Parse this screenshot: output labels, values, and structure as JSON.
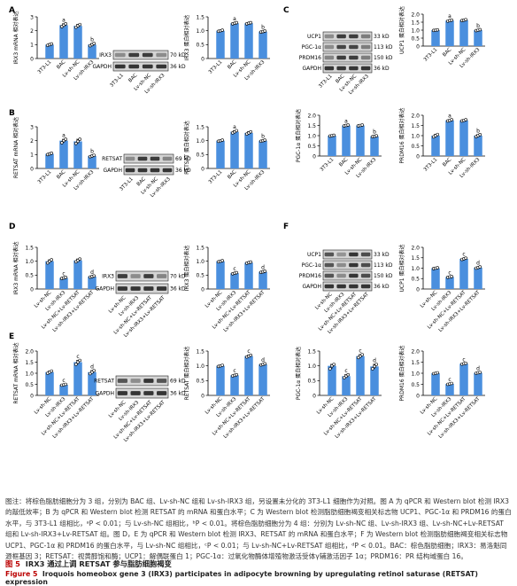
{
  "colors": {
    "bar": "#4a8fde",
    "blot_bg": "#d4d4d4",
    "band": "#353535",
    "caption_fig": "#b00000"
  },
  "panel_letters": [
    "A",
    "B",
    "C",
    "D",
    "E",
    "F"
  ],
  "caption": {
    "body": "图注：将棕色脂肪细胞分为 3 组，分别为 BAC 组、Lv-sh-NC 组和 Lv-sh-IRX3 组，另设置未分化的 3T3-L1 细胞作为对照。图 A 为 qPCR 和 Western blot 检测 IRX3 的敲低效率；B 为 qPCR 和 Western blot 检测 RETSAT 的 mRNA 和蛋白水平；C 为 Western blot 检测脂肪细胞褐变相关标志物 UCP1、PGC-1α 和 PRDM16 的蛋白水平，与 3T3-L1 组相比，ᵃP < 0.01；与 Lv-sh-NC 组相比，ᵇP < 0.01。将棕色脂肪细胞分为 4 组：分别为 Lv-sh-NC 组、Lv-sh-IRX3 组、Lv-sh-NC+Lv-RETSAT 组和 Lv-sh-IRX3+Lv-RETSAT 组。图 D，E 为 qPCR 和 Western blot 检测 IRX3、RETSAT 的 mRNA 和蛋白水平；F 为 Western blot 检测脂肪细胞褐变相关标志物 UCP1、PGC-1α 和 PRDM16 的蛋白水平，与 Lv-sh-NC 组相比，ᶜP < 0.01；与 Lv-sh-NC+Lv-RETSAT 组相比，ᵈP < 0.01。BAC：棕色脂肪细胞；IRX3：易洛魁同源框基因 3；RETSAT：视黄醇饱和酶；UCP1：解偶联蛋白 1；PGC-1α：过氧化物酶体增殖物激活受体γ辅激活因子 1α；PRDM16：PR 结构域蛋白 16。",
    "title_num": "图 5",
    "title": "IRX3 通过上调 RETSAT 参与脂肪细胞褐变",
    "en_num": "Figure 5",
    "en_title": "Iroquois homeobox gene 3 (IRX3) participates in adipocyte browning by upregulating retinol saturase (RETSAT) expression"
  },
  "blots": [
    {
      "panel": "A",
      "rows": [
        {
          "name": "IRX3",
          "size": "70 kD"
        },
        {
          "name": "GAPDH",
          "size": "36 kD"
        }
      ],
      "lanes": [
        "3T3-L1",
        "BAC",
        "Lv-sh-NC",
        "Lv-sh-IRX3"
      ],
      "intensity": [
        [
          0.45,
          0.95,
          0.95,
          0.45
        ],
        [
          1,
          1,
          1,
          1
        ]
      ]
    },
    {
      "panel": "B",
      "rows": [
        {
          "name": "RETSAT",
          "size": "69 kD"
        },
        {
          "name": "GAPDH",
          "size": "36 kD"
        }
      ],
      "lanes": [
        "3T3-L1",
        "BAC",
        "Lv-sh-NC",
        "Lv-sh-IRX3"
      ],
      "intensity": [
        [
          0.45,
          0.95,
          0.95,
          0.5
        ],
        [
          1,
          1,
          1,
          1
        ]
      ]
    },
    {
      "panel": "C",
      "rows": [
        {
          "name": "UCP1",
          "size": "33 kD"
        },
        {
          "name": "PGC-1α",
          "size": "113 kD"
        },
        {
          "name": "PRDM16",
          "size": "150 kD"
        },
        {
          "name": "GAPDH",
          "size": "36 kD"
        }
      ],
      "lanes": [
        "3T3-L1",
        "BAC",
        "Lv-sh-NC",
        "Lv-sh-IRX3"
      ],
      "intensity": [
        [
          0.45,
          0.95,
          0.95,
          0.55
        ],
        [
          0.45,
          0.9,
          0.9,
          0.55
        ],
        [
          0.5,
          0.95,
          0.95,
          0.55
        ],
        [
          1,
          1,
          1,
          1
        ]
      ]
    },
    {
      "panel": "D",
      "rows": [
        {
          "name": "IRX3",
          "size": "70 kD"
        },
        {
          "name": "GAPDH",
          "size": "36 kD"
        }
      ],
      "lanes": [
        "Lv-sh-NC",
        "Lv-sh-IRX3",
        "Lv-sh-NC+Lv-RETSAT",
        "Lv-sh-IRX3+Lv-RETSAT"
      ],
      "intensity": [
        [
          0.95,
          0.45,
          0.95,
          0.5
        ],
        [
          1,
          1,
          1,
          1
        ]
      ]
    },
    {
      "panel": "E",
      "rows": [
        {
          "name": "RETSAT",
          "size": "69 kD"
        },
        {
          "name": "GAPDH",
          "size": "36 kD"
        }
      ],
      "lanes": [
        "Lv-sh-NC",
        "Lv-sh-IRX3",
        "Lv-sh-NC+Lv-RETSAT",
        "Lv-sh-IRX3+Lv-RETSAT"
      ],
      "intensity": [
        [
          0.8,
          0.45,
          1,
          0.8
        ],
        [
          1,
          1,
          1,
          1
        ]
      ]
    },
    {
      "panel": "F",
      "rows": [
        {
          "name": "UCP1",
          "size": "33 kD"
        },
        {
          "name": "PGC-1α",
          "size": "113 kD"
        },
        {
          "name": "PRDM16",
          "size": "150 kD"
        },
        {
          "name": "GAPDH",
          "size": "36 kD"
        }
      ],
      "lanes": [
        "Lv-sh-NC",
        "Lv-sh-IRX3",
        "Lv-sh-NC+Lv-RETSAT",
        "Lv-sh-IRX3+Lv-RETSAT"
      ],
      "intensity": [
        [
          0.8,
          0.4,
          1,
          0.85
        ],
        [
          0.8,
          0.45,
          1,
          0.85
        ],
        [
          0.8,
          0.45,
          1,
          0.85
        ],
        [
          1,
          1,
          1,
          1
        ]
      ]
    }
  ],
  "chart_data": [
    {
      "panel": "A",
      "type": "bar",
      "ylabel": "IRX3 mRNA 相对表达",
      "categories": [
        "3T3-L1",
        "BAC",
        "Lv-sh-NC",
        "Lv-sh-IRX3"
      ],
      "values": [
        1.0,
        2.4,
        2.35,
        1.0
      ],
      "points": [
        [
          0.95,
          1.0,
          1.05
        ],
        [
          2.3,
          2.4,
          2.5
        ],
        [
          2.25,
          2.35,
          2.45
        ],
        [
          0.92,
          1.0,
          1.08
        ]
      ],
      "sig": [
        "",
        "a",
        "",
        "b"
      ],
      "ylim": [
        0,
        3
      ],
      "yticks": [
        0,
        1,
        2,
        3
      ],
      "ytick_labels": [
        "0",
        "1",
        "2",
        "3"
      ]
    },
    {
      "panel": "A",
      "type": "bar",
      "ylabel": "IRX3 蛋白相对表达",
      "categories": [
        "3T3-L1",
        "BAC",
        "Lv-sh-NC",
        "Lv-sh-IRX3"
      ],
      "values": [
        1.0,
        1.27,
        1.27,
        0.97
      ],
      "points": [
        [
          0.98,
          1.0,
          1.02
        ],
        [
          1.25,
          1.27,
          1.29
        ],
        [
          1.25,
          1.27,
          1.29
        ],
        [
          0.95,
          0.97,
          0.99
        ]
      ],
      "sig": [
        "",
        "a",
        "",
        "b"
      ],
      "ylim": [
        0,
        1.5
      ],
      "yticks": [
        0,
        0.5,
        1.0,
        1.5
      ],
      "ytick_labels": [
        "0",
        "0.5",
        "1.0",
        "1.5"
      ]
    },
    {
      "panel": "B",
      "type": "bar",
      "ylabel": "RETSAT mRNA 相对表达",
      "categories": [
        "3T3-L1",
        "BAC",
        "Lv-sh-NC",
        "Lv-sh-IRX3"
      ],
      "values": [
        1.05,
        2.0,
        1.95,
        0.9
      ],
      "points": [
        [
          1.0,
          1.05,
          1.1
        ],
        [
          1.85,
          2.0,
          2.1
        ],
        [
          1.8,
          1.95,
          2.1
        ],
        [
          0.85,
          0.9,
          0.95
        ]
      ],
      "sig": [
        "",
        "a",
        "",
        "b"
      ],
      "ylim": [
        0,
        3
      ],
      "yticks": [
        0,
        1,
        2,
        3
      ],
      "ytick_labels": [
        "0",
        "1",
        "2",
        "3"
      ]
    },
    {
      "panel": "B",
      "type": "bar",
      "ylabel": "RETSAT 蛋白相对表达",
      "categories": [
        "3T3-L1",
        "BAC",
        "Lv-sh-NC",
        "Lv-sh-IRX3"
      ],
      "values": [
        1.0,
        1.32,
        1.28,
        1.0
      ],
      "points": [
        [
          0.98,
          1.0,
          1.02
        ],
        [
          1.28,
          1.32,
          1.36
        ],
        [
          1.24,
          1.28,
          1.32
        ],
        [
          0.98,
          1.0,
          1.02
        ]
      ],
      "sig": [
        "",
        "a",
        "",
        "b"
      ],
      "ylim": [
        0,
        1.5
      ],
      "yticks": [
        0,
        0.5,
        1.0,
        1.5
      ],
      "ytick_labels": [
        "0",
        "0.5",
        "1.0",
        "1.5"
      ]
    },
    {
      "panel": "C",
      "type": "bar",
      "ylabel": "UCP1 蛋白相对表达",
      "categories": [
        "3T3-L1",
        "BAC",
        "Lv-sh-NC",
        "Lv-sh-IRX3"
      ],
      "values": [
        1.0,
        1.6,
        1.63,
        1.0
      ],
      "points": [
        [
          0.98,
          1.0,
          1.02
        ],
        [
          1.57,
          1.6,
          1.63
        ],
        [
          1.6,
          1.63,
          1.66
        ],
        [
          0.97,
          1.0,
          1.03
        ]
      ],
      "sig": [
        "",
        "a",
        "",
        "b"
      ],
      "ylim": [
        0,
        2
      ],
      "yticks": [
        0,
        0.5,
        1.0,
        1.5,
        2.0
      ],
      "ytick_labels": [
        "0",
        "0.5",
        "1.0",
        "1.5",
        "2.0"
      ]
    },
    {
      "panel": "C",
      "type": "bar",
      "ylabel": "PGC-1α 蛋白相对表达",
      "categories": [
        "3T3-L1",
        "BAC",
        "Lv-sh-NC",
        "Lv-sh-IRX3"
      ],
      "values": [
        1.0,
        1.5,
        1.5,
        0.97
      ],
      "points": [
        [
          0.98,
          1.0,
          1.02
        ],
        [
          1.48,
          1.5,
          1.52
        ],
        [
          1.48,
          1.5,
          1.52
        ],
        [
          0.95,
          0.97,
          0.99
        ]
      ],
      "sig": [
        "",
        "a",
        "",
        "b"
      ],
      "ylim": [
        0,
        2
      ],
      "yticks": [
        0,
        0.5,
        1.0,
        1.5,
        2.0
      ],
      "ytick_labels": [
        "0",
        "0.5",
        "1.0",
        "1.5",
        "2.0"
      ]
    },
    {
      "panel": "C",
      "type": "bar",
      "ylabel": "PRDM16 蛋白相对表达",
      "categories": [
        "3T3-L1",
        "BAC",
        "Lv-sh-NC",
        "Lv-sh-IRX3"
      ],
      "values": [
        1.0,
        1.75,
        1.75,
        1.0
      ],
      "points": [
        [
          0.94,
          1.0,
          1.06
        ],
        [
          1.72,
          1.75,
          1.78
        ],
        [
          1.72,
          1.75,
          1.78
        ],
        [
          0.95,
          1.0,
          1.05
        ]
      ],
      "sig": [
        "",
        "a",
        "",
        "b"
      ],
      "ylim": [
        0,
        2
      ],
      "yticks": [
        0,
        0.5,
        1.0,
        1.5,
        2.0
      ],
      "ytick_labels": [
        "0",
        "0.5",
        "1.0",
        "1.5",
        "2.0"
      ]
    },
    {
      "panel": "D",
      "type": "bar",
      "ylabel": "IRX3 mRNA 相对表达",
      "categories": [
        "Lv-sh-NC",
        "Lv-sh-IRX3",
        "Lv-sh-NC+Lv-RETSAT",
        "Lv-sh-IRX3+Lv-RETSAT"
      ],
      "values": [
        1.0,
        0.4,
        1.03,
        0.45
      ],
      "points": [
        [
          0.94,
          1.0,
          1.05
        ],
        [
          0.38,
          0.4,
          0.42
        ],
        [
          0.98,
          1.03,
          1.08
        ],
        [
          0.43,
          0.45,
          0.47
        ]
      ],
      "sig": [
        "",
        "c",
        "",
        "d"
      ],
      "ylim": [
        0,
        1.5
      ],
      "yticks": [
        0,
        0.5,
        1.0,
        1.5
      ],
      "ytick_labels": [
        "0",
        "0.5",
        "1.0",
        "1.5"
      ]
    },
    {
      "panel": "D",
      "type": "bar",
      "ylabel": "IRX3 蛋白相对表达",
      "categories": [
        "Lv-sh-NC",
        "Lv-sh-IRX3",
        "Lv-sh-NC+Lv-RETSAT",
        "Lv-sh-IRX3+Lv-RETSAT"
      ],
      "values": [
        1.0,
        0.57,
        0.95,
        0.62
      ],
      "points": [
        [
          0.98,
          1.0,
          1.02
        ],
        [
          0.55,
          0.57,
          0.59
        ],
        [
          0.93,
          0.95,
          0.97
        ],
        [
          0.6,
          0.62,
          0.64
        ]
      ],
      "sig": [
        "",
        "c",
        "",
        "d"
      ],
      "ylim": [
        0,
        1.5
      ],
      "yticks": [
        0,
        0.5,
        1.0,
        1.5
      ],
      "ytick_labels": [
        "0",
        "0.5",
        "1.0",
        "1.5"
      ]
    },
    {
      "panel": "F",
      "type": "bar",
      "ylabel": "UCP1 蛋白相对表达",
      "categories": [
        "Lv-sh-NC",
        "Lv-sh-IRX3",
        "Lv-sh-NC+Lv-RETSAT",
        "Lv-sh-IRX3+Lv-RETSAT"
      ],
      "values": [
        1.0,
        0.58,
        1.45,
        1.03
      ],
      "points": [
        [
          0.98,
          1.0,
          1.02
        ],
        [
          0.56,
          0.58,
          0.6
        ],
        [
          1.42,
          1.45,
          1.48
        ],
        [
          1.0,
          1.03,
          1.06
        ]
      ],
      "sig": [
        "",
        "c",
        "c",
        "d"
      ],
      "ylim": [
        0,
        2
      ],
      "yticks": [
        0,
        0.5,
        1.0,
        1.5,
        2.0
      ],
      "ytick_labels": [
        "0",
        "0.5",
        "1.0",
        "1.5",
        "2.0"
      ]
    },
    {
      "panel": "E",
      "type": "bar",
      "ylabel": "RETSAT mRNA 相对表达",
      "categories": [
        "Lv-sh-NC",
        "Lv-sh-IRX3",
        "Lv-sh-NC+Lv-RETSAT",
        "Lv-sh-IRX3+Lv-RETSAT"
      ],
      "values": [
        1.05,
        0.48,
        1.5,
        1.05
      ],
      "points": [
        [
          1.0,
          1.05,
          1.1
        ],
        [
          0.46,
          0.48,
          0.5
        ],
        [
          1.4,
          1.5,
          1.58
        ],
        [
          0.98,
          1.05,
          1.12
        ]
      ],
      "sig": [
        "",
        "c",
        "c",
        "d"
      ],
      "ylim": [
        0,
        2
      ],
      "yticks": [
        0,
        0.5,
        1.0,
        1.5,
        2.0
      ],
      "ytick_labels": [
        "0",
        "0.5",
        "1.0",
        "1.5",
        "2.0"
      ]
    },
    {
      "panel": "E",
      "type": "bar",
      "ylabel": "RETSAT 蛋白相对表达",
      "categories": [
        "Lv-sh-NC",
        "Lv-sh-IRX3",
        "Lv-sh-NC+Lv-RETSAT",
        "Lv-sh-IRX3+Lv-RETSAT"
      ],
      "values": [
        1.0,
        0.68,
        1.33,
        1.05
      ],
      "points": [
        [
          0.98,
          1.0,
          1.02
        ],
        [
          0.66,
          0.68,
          0.7
        ],
        [
          1.3,
          1.33,
          1.36
        ],
        [
          1.03,
          1.05,
          1.07
        ]
      ],
      "sig": [
        "",
        "c",
        "c",
        "d"
      ],
      "ylim": [
        0,
        1.5
      ],
      "yticks": [
        0,
        0.5,
        1.0,
        1.5
      ],
      "ytick_labels": [
        "0",
        "0.5",
        "1.0",
        "1.5"
      ]
    },
    {
      "panel": "F",
      "type": "bar",
      "ylabel": "PGC-1α 蛋白相对表达",
      "categories": [
        "Lv-sh-NC",
        "Lv-sh-IRX3",
        "Lv-sh-NC+Lv-RETSAT",
        "Lv-sh-IRX3+Lv-RETSAT"
      ],
      "values": [
        1.0,
        0.65,
        1.33,
        0.98
      ],
      "points": [
        [
          0.9,
          1.0,
          1.05
        ],
        [
          0.6,
          0.65,
          0.7
        ],
        [
          1.28,
          1.33,
          1.38
        ],
        [
          0.9,
          0.98,
          1.05
        ]
      ],
      "sig": [
        "",
        "c",
        "c",
        "d"
      ],
      "ylim": [
        0,
        1.5
      ],
      "yticks": [
        0,
        0.5,
        1.0,
        1.5
      ],
      "ytick_labels": [
        "0",
        "0.5",
        "1.0",
        "1.5"
      ]
    },
    {
      "panel": "F",
      "type": "bar",
      "ylabel": "PRDM16 蛋白相对表达",
      "categories": [
        "Lv-sh-NC",
        "Lv-sh-IRX3",
        "Lv-sh-NC+Lv-RETSAT",
        "Lv-sh-IRX3+Lv-RETSAT"
      ],
      "values": [
        1.0,
        0.52,
        1.43,
        1.02
      ],
      "points": [
        [
          0.98,
          1.0,
          1.02
        ],
        [
          0.5,
          0.52,
          0.54
        ],
        [
          1.41,
          1.43,
          1.45
        ],
        [
          1.0,
          1.02,
          1.04
        ]
      ],
      "sig": [
        "",
        "c",
        "c",
        "d"
      ],
      "ylim": [
        0,
        2
      ],
      "yticks": [
        0,
        0.5,
        1.0,
        1.5,
        2.0
      ],
      "ytick_labels": [
        "0",
        "0.5",
        "1.0",
        "1.5",
        "2.0"
      ]
    }
  ]
}
